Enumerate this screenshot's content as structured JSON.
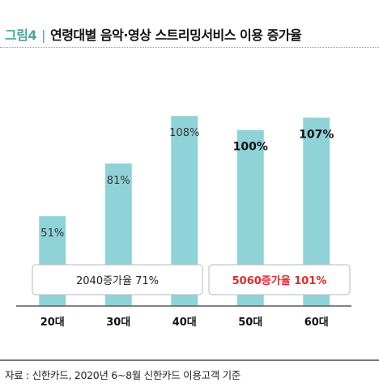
{
  "title": {
    "figure_label": "그림4",
    "separator": "|",
    "text": "연령대별 음악·영상 스트리밍서비스 이용 증가율"
  },
  "source": "자료 : 신한카드, 2020년 6~8월 신한카드 이용고객 기준",
  "colors": {
    "bar": "#8fd3d8",
    "accent": "#4aa39c",
    "highlight_red": "#e8262b",
    "text": "#222222"
  },
  "chart_data": {
    "type": "bar",
    "categories": [
      "20대",
      "30대",
      "40대",
      "50대",
      "60대"
    ],
    "values": [
      51,
      81,
      108,
      100,
      107
    ],
    "data_labels": [
      "51%",
      "81%",
      "108%",
      "100%",
      "107%"
    ],
    "ylim": [
      0,
      115
    ],
    "grid": false,
    "annotations": [
      {
        "text": "2040증가율 71%",
        "groups": [
          "20대",
          "30대",
          "40대"
        ],
        "emphasis": false
      },
      {
        "text": "5060증가율 101%",
        "groups": [
          "50대",
          "60대"
        ],
        "emphasis": true
      }
    ]
  }
}
